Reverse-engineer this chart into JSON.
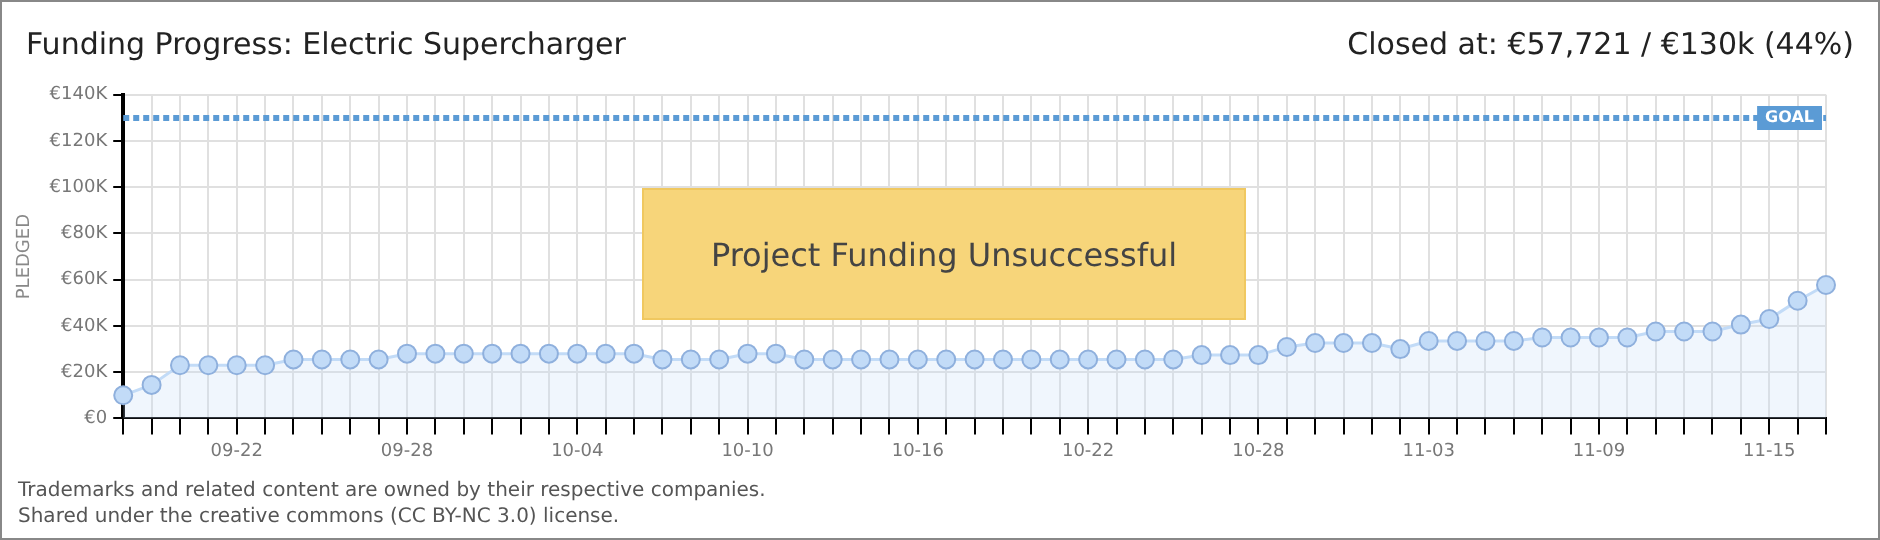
{
  "chart_data": {
    "type": "area",
    "title": "Funding Progress: Electric Supercharger",
    "subtitle": "Closed at:  €57,721 /  €130k (44%)",
    "ylabel": "PLEDGED",
    "categories": [
      null,
      null,
      null,
      null,
      "09-22",
      null,
      null,
      null,
      null,
      null,
      "09-28",
      null,
      null,
      null,
      null,
      null,
      "10-04",
      null,
      null,
      null,
      null,
      null,
      "10-10",
      null,
      null,
      null,
      null,
      null,
      "10-16",
      null,
      null,
      null,
      null,
      null,
      "10-22",
      null,
      null,
      null,
      null,
      null,
      "10-28",
      null,
      null,
      null,
      null,
      null,
      "11-03",
      null,
      null,
      null,
      null,
      null,
      "11-09",
      null,
      null,
      null,
      null,
      null,
      "11-15",
      null,
      null
    ],
    "series": [
      {
        "color": "#c2dbf7",
        "values": [
          10000,
          14500,
          23000,
          23000,
          23000,
          23000,
          25500,
          25500,
          25500,
          25500,
          28000,
          28000,
          28000,
          28000,
          28000,
          28000,
          28000,
          28000,
          28000,
          25500,
          25500,
          25500,
          28000,
          28000,
          25500,
          25500,
          25500,
          25500,
          25500,
          25500,
          25500,
          25500,
          25500,
          25500,
          25500,
          25500,
          25500,
          25500,
          27400,
          27400,
          27400,
          30900,
          32600,
          32600,
          32600,
          30000,
          33500,
          33500,
          33500,
          33500,
          35000,
          35000,
          35000,
          35000,
          37600,
          37600,
          37600,
          40600,
          43000,
          50900,
          57721
        ]
      }
    ],
    "ylim": [
      0,
      140000
    ],
    "yticks": [
      {
        "value": 0,
        "label": "€0"
      },
      {
        "value": 20000,
        "label": "€20K"
      },
      {
        "value": 40000,
        "label": "€40K"
      },
      {
        "value": 60000,
        "label": "€60K"
      },
      {
        "value": 80000,
        "label": "€80K"
      },
      {
        "value": 100000,
        "label": "€100K"
      },
      {
        "value": 120000,
        "label": "€120K"
      },
      {
        "value": 140000,
        "label": "€140K"
      }
    ],
    "ref_lines": [
      {
        "axis": "y",
        "value": 130000,
        "label": "GOAL",
        "color": "#5b9bd5",
        "line_style": "dotted"
      }
    ],
    "grid": true,
    "marker": "circle",
    "legend": false,
    "annotations": [
      "Project Funding Unsuccessful",
      "Trademarks and related content are owned by their respective companies.",
      "Shared under the creative commons (CC BY-NC 3.0) license."
    ]
  }
}
